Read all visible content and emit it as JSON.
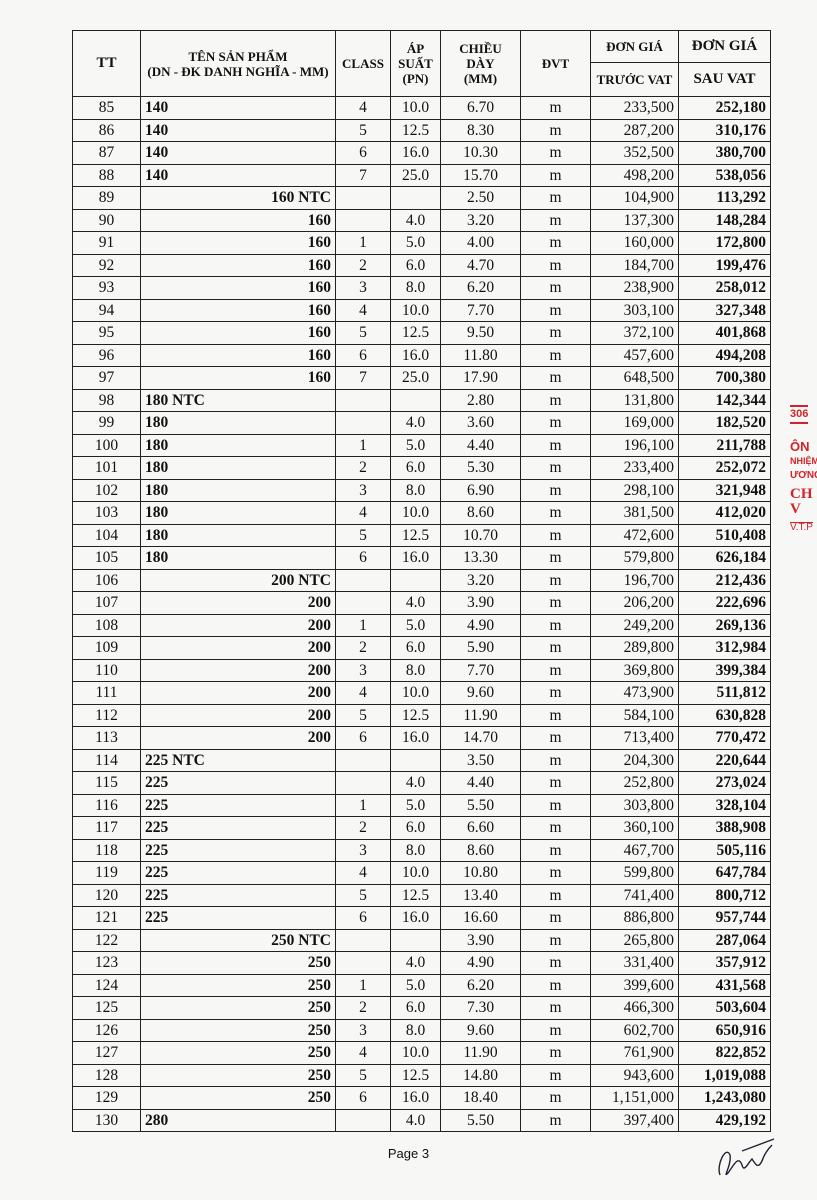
{
  "header": {
    "tt": "TT",
    "product_line1": "TÊN SẢN PHẨM",
    "product_line2": "(DN - ĐK DANH NGHĨA - MM)",
    "class": "CLASS",
    "pressure": [
      "ÁP",
      "SUẤT",
      "(PN)"
    ],
    "thickness": [
      "CHIỀU",
      "DÀY",
      "(MM)"
    ],
    "unit": "ĐVT",
    "price_label_1": "ĐƠN GIÁ",
    "price_label_2": "ĐƠN GIÁ",
    "before_vat": "TRƯỚC VAT",
    "after_vat": "SAU VAT"
  },
  "rows": [
    {
      "tt": "85",
      "name": "140",
      "right": false,
      "cls": "4",
      "pn": "10.0",
      "mm": "6.70",
      "unit": "m",
      "before": "233,500",
      "after": "252,180"
    },
    {
      "tt": "86",
      "name": "140",
      "right": false,
      "cls": "5",
      "pn": "12.5",
      "mm": "8.30",
      "unit": "m",
      "before": "287,200",
      "after": "310,176"
    },
    {
      "tt": "87",
      "name": "140",
      "right": false,
      "cls": "6",
      "pn": "16.0",
      "mm": "10.30",
      "unit": "m",
      "before": "352,500",
      "after": "380,700"
    },
    {
      "tt": "88",
      "name": "140",
      "right": false,
      "cls": "7",
      "pn": "25.0",
      "mm": "15.70",
      "unit": "m",
      "before": "498,200",
      "after": "538,056"
    },
    {
      "tt": "89",
      "name": "160 NTC",
      "right": true,
      "cls": "",
      "pn": "",
      "mm": "2.50",
      "unit": "m",
      "before": "104,900",
      "after": "113,292"
    },
    {
      "tt": "90",
      "name": "160",
      "right": true,
      "cls": "",
      "pn": "4.0",
      "mm": "3.20",
      "unit": "m",
      "before": "137,300",
      "after": "148,284"
    },
    {
      "tt": "91",
      "name": "160",
      "right": true,
      "cls": "1",
      "pn": "5.0",
      "mm": "4.00",
      "unit": "m",
      "before": "160,000",
      "after": "172,800"
    },
    {
      "tt": "92",
      "name": "160",
      "right": true,
      "cls": "2",
      "pn": "6.0",
      "mm": "4.70",
      "unit": "m",
      "before": "184,700",
      "after": "199,476"
    },
    {
      "tt": "93",
      "name": "160",
      "right": true,
      "cls": "3",
      "pn": "8.0",
      "mm": "6.20",
      "unit": "m",
      "before": "238,900",
      "after": "258,012"
    },
    {
      "tt": "94",
      "name": "160",
      "right": true,
      "cls": "4",
      "pn": "10.0",
      "mm": "7.70",
      "unit": "m",
      "before": "303,100",
      "after": "327,348"
    },
    {
      "tt": "95",
      "name": "160",
      "right": true,
      "cls": "5",
      "pn": "12.5",
      "mm": "9.50",
      "unit": "m",
      "before": "372,100",
      "after": "401,868"
    },
    {
      "tt": "96",
      "name": "160",
      "right": true,
      "cls": "6",
      "pn": "16.0",
      "mm": "11.80",
      "unit": "m",
      "before": "457,600",
      "after": "494,208"
    },
    {
      "tt": "97",
      "name": "160",
      "right": true,
      "cls": "7",
      "pn": "25.0",
      "mm": "17.90",
      "unit": "m",
      "before": "648,500",
      "after": "700,380"
    },
    {
      "tt": "98",
      "name": "180 NTC",
      "right": false,
      "cls": "",
      "pn": "",
      "mm": "2.80",
      "unit": "m",
      "before": "131,800",
      "after": "142,344"
    },
    {
      "tt": "99",
      "name": "180",
      "right": false,
      "cls": "",
      "pn": "4.0",
      "mm": "3.60",
      "unit": "m",
      "before": "169,000",
      "after": "182,520"
    },
    {
      "tt": "100",
      "name": "180",
      "right": false,
      "cls": "1",
      "pn": "5.0",
      "mm": "4.40",
      "unit": "m",
      "before": "196,100",
      "after": "211,788"
    },
    {
      "tt": "101",
      "name": "180",
      "right": false,
      "cls": "2",
      "pn": "6.0",
      "mm": "5.30",
      "unit": "m",
      "before": "233,400",
      "after": "252,072"
    },
    {
      "tt": "102",
      "name": "180",
      "right": false,
      "cls": "3",
      "pn": "8.0",
      "mm": "6.90",
      "unit": "m",
      "before": "298,100",
      "after": "321,948"
    },
    {
      "tt": "103",
      "name": "180",
      "right": false,
      "cls": "4",
      "pn": "10.0",
      "mm": "8.60",
      "unit": "m",
      "before": "381,500",
      "after": "412,020"
    },
    {
      "tt": "104",
      "name": "180",
      "right": false,
      "cls": "5",
      "pn": "12.5",
      "mm": "10.70",
      "unit": "m",
      "before": "472,600",
      "after": "510,408"
    },
    {
      "tt": "105",
      "name": "180",
      "right": false,
      "cls": "6",
      "pn": "16.0",
      "mm": "13.30",
      "unit": "m",
      "before": "579,800",
      "after": "626,184"
    },
    {
      "tt": "106",
      "name": "200 NTC",
      "right": true,
      "cls": "",
      "pn": "",
      "mm": "3.20",
      "unit": "m",
      "before": "196,700",
      "after": "212,436"
    },
    {
      "tt": "107",
      "name": "200",
      "right": true,
      "cls": "",
      "pn": "4.0",
      "mm": "3.90",
      "unit": "m",
      "before": "206,200",
      "after": "222,696"
    },
    {
      "tt": "108",
      "name": "200",
      "right": true,
      "cls": "1",
      "pn": "5.0",
      "mm": "4.90",
      "unit": "m",
      "before": "249,200",
      "after": "269,136"
    },
    {
      "tt": "109",
      "name": "200",
      "right": true,
      "cls": "2",
      "pn": "6.0",
      "mm": "5.90",
      "unit": "m",
      "before": "289,800",
      "after": "312,984"
    },
    {
      "tt": "110",
      "name": "200",
      "right": true,
      "cls": "3",
      "pn": "8.0",
      "mm": "7.70",
      "unit": "m",
      "before": "369,800",
      "after": "399,384"
    },
    {
      "tt": "111",
      "name": "200",
      "right": true,
      "cls": "4",
      "pn": "10.0",
      "mm": "9.60",
      "unit": "m",
      "before": "473,900",
      "after": "511,812"
    },
    {
      "tt": "112",
      "name": "200",
      "right": true,
      "cls": "5",
      "pn": "12.5",
      "mm": "11.90",
      "unit": "m",
      "before": "584,100",
      "after": "630,828"
    },
    {
      "tt": "113",
      "name": "200",
      "right": true,
      "cls": "6",
      "pn": "16.0",
      "mm": "14.70",
      "unit": "m",
      "before": "713,400",
      "after": "770,472"
    },
    {
      "tt": "114",
      "name": "225 NTC",
      "right": false,
      "cls": "",
      "pn": "",
      "mm": "3.50",
      "unit": "m",
      "before": "204,300",
      "after": "220,644"
    },
    {
      "tt": "115",
      "name": "225",
      "right": false,
      "cls": "",
      "pn": "4.0",
      "mm": "4.40",
      "unit": "m",
      "before": "252,800",
      "after": "273,024"
    },
    {
      "tt": "116",
      "name": "225",
      "right": false,
      "cls": "1",
      "pn": "5.0",
      "mm": "5.50",
      "unit": "m",
      "before": "303,800",
      "after": "328,104"
    },
    {
      "tt": "117",
      "name": "225",
      "right": false,
      "cls": "2",
      "pn": "6.0",
      "mm": "6.60",
      "unit": "m",
      "before": "360,100",
      "after": "388,908"
    },
    {
      "tt": "118",
      "name": "225",
      "right": false,
      "cls": "3",
      "pn": "8.0",
      "mm": "8.60",
      "unit": "m",
      "before": "467,700",
      "after": "505,116"
    },
    {
      "tt": "119",
      "name": "225",
      "right": false,
      "cls": "4",
      "pn": "10.0",
      "mm": "10.80",
      "unit": "m",
      "before": "599,800",
      "after": "647,784"
    },
    {
      "tt": "120",
      "name": "225",
      "right": false,
      "cls": "5",
      "pn": "12.5",
      "mm": "13.40",
      "unit": "m",
      "before": "741,400",
      "after": "800,712"
    },
    {
      "tt": "121",
      "name": "225",
      "right": false,
      "cls": "6",
      "pn": "16.0",
      "mm": "16.60",
      "unit": "m",
      "before": "886,800",
      "after": "957,744"
    },
    {
      "tt": "122",
      "name": "250 NTC",
      "right": true,
      "cls": "",
      "pn": "",
      "mm": "3.90",
      "unit": "m",
      "before": "265,800",
      "after": "287,064"
    },
    {
      "tt": "123",
      "name": "250",
      "right": true,
      "cls": "",
      "pn": "4.0",
      "mm": "4.90",
      "unit": "m",
      "before": "331,400",
      "after": "357,912"
    },
    {
      "tt": "124",
      "name": "250",
      "right": true,
      "cls": "1",
      "pn": "5.0",
      "mm": "6.20",
      "unit": "m",
      "before": "399,600",
      "after": "431,568"
    },
    {
      "tt": "125",
      "name": "250",
      "right": true,
      "cls": "2",
      "pn": "6.0",
      "mm": "7.30",
      "unit": "m",
      "before": "466,300",
      "after": "503,604"
    },
    {
      "tt": "126",
      "name": "250",
      "right": true,
      "cls": "3",
      "pn": "8.0",
      "mm": "9.60",
      "unit": "m",
      "before": "602,700",
      "after": "650,916"
    },
    {
      "tt": "127",
      "name": "250",
      "right": true,
      "cls": "4",
      "pn": "10.0",
      "mm": "11.90",
      "unit": "m",
      "before": "761,900",
      "after": "822,852"
    },
    {
      "tt": "128",
      "name": "250",
      "right": true,
      "cls": "5",
      "pn": "12.5",
      "mm": "14.80",
      "unit": "m",
      "before": "943,600",
      "after": "1,019,088"
    },
    {
      "tt": "129",
      "name": "250",
      "right": true,
      "cls": "6",
      "pn": "16.0",
      "mm": "18.40",
      "unit": "m",
      "before": "1,151,000",
      "after": "1,243,080"
    },
    {
      "tt": "130",
      "name": "280",
      "right": false,
      "cls": "",
      "pn": "4.0",
      "mm": "5.50",
      "unit": "m",
      "before": "397,400",
      "after": "429,192"
    }
  ],
  "footer": {
    "page": "Page 3"
  },
  "stamp": {
    "lines": [
      "306",
      "ÔN",
      "NHIỆM",
      "ƯƠNC",
      "CH V",
      "V.T.P"
    ],
    "color": "#d3232a"
  }
}
